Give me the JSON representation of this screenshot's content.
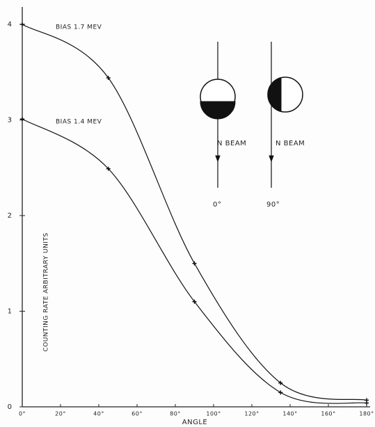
{
  "chart_data": {
    "type": "line",
    "x_label": "ANGLE",
    "y_label": "COUNTING RATE ARBITRARY UNITS",
    "x": [
      0,
      45,
      90,
      135,
      180
    ],
    "series": [
      {
        "name": "BIAS 1.7 MEV",
        "color": "#111111",
        "values": [
          4.0,
          3.44,
          1.5,
          0.25,
          0.07
        ]
      },
      {
        "name": "BIAS 1.4 MEV",
        "color": "#111111",
        "values": [
          3.01,
          2.49,
          1.1,
          0.15,
          0.04
        ]
      }
    ],
    "xlim": [
      0,
      180
    ],
    "xticks": [
      {
        "value": 0,
        "label": "0°"
      },
      {
        "value": 20,
        "label": "20°"
      },
      {
        "value": 40,
        "label": "40°"
      },
      {
        "value": 60,
        "label": "60°"
      },
      {
        "value": 80,
        "label": "80°"
      },
      {
        "value": 100,
        "label": "100°"
      },
      {
        "value": 120,
        "label": "120°"
      },
      {
        "value": 140,
        "label": "140°"
      },
      {
        "value": 160,
        "label": "160°"
      },
      {
        "value": 180,
        "label": "180°"
      }
    ],
    "ylim": [
      0,
      4
    ],
    "yticks": [
      0,
      1,
      2,
      3,
      4
    ],
    "grid": false,
    "inset_labels": [
      "N BEAM",
      "N BEAM",
      "0°",
      "90°"
    ]
  }
}
